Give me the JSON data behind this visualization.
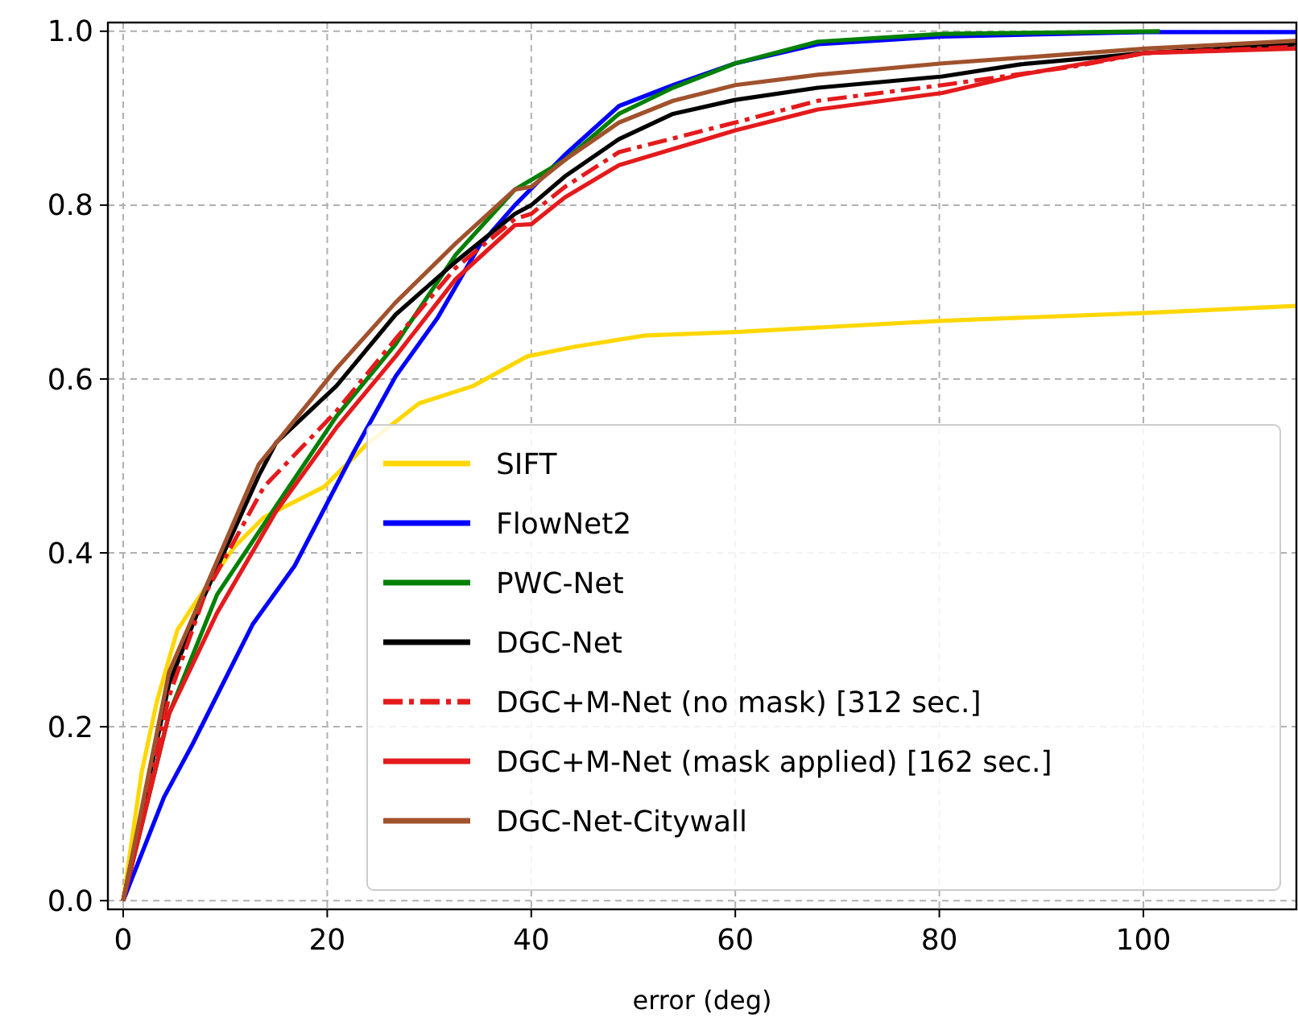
{
  "chart_data": {
    "type": "line",
    "xlabel": "error (deg)",
    "xlim": [
      -1.5,
      115
    ],
    "ylim": [
      -0.01,
      1.01
    ],
    "xticks": [
      0,
      20,
      40,
      60,
      80,
      100
    ],
    "yticks": [
      {
        "value": 0,
        "label": "0.0"
      },
      {
        "value": 0.2,
        "label": "0.2"
      },
      {
        "value": 0.4,
        "label": "0.4"
      },
      {
        "value": 0.6,
        "label": "0.6"
      },
      {
        "value": 0.8,
        "label": "0.8"
      },
      {
        "value": 1,
        "label": "1.0"
      }
    ],
    "grid": true,
    "legend": "bottom right",
    "series": [
      {
        "name": "SIFT",
        "color": "#ffd700",
        "line_style": "solid",
        "x": [
          0,
          1.8,
          3.3,
          5.3,
          6.8,
          10.9,
          13.8,
          19.7,
          23.8,
          29.0,
          34.3,
          39.6,
          44.2,
          51.2,
          60,
          80.3,
          100.2,
          115
        ],
        "values": [
          0,
          0.147,
          0.229,
          0.311,
          0.338,
          0.407,
          0.441,
          0.476,
          0.524,
          0.572,
          0.592,
          0.626,
          0.637,
          0.65,
          0.654,
          0.667,
          0.676,
          0.684
        ]
      },
      {
        "name": "FlowNet2",
        "color": "#0000ff",
        "line_style": "solid",
        "x": [
          0,
          4.0,
          6.8,
          12.7,
          16.8,
          22.6,
          26.7,
          30.8,
          34.9,
          38.4,
          43.3,
          48.6,
          53.9,
          60,
          68.1,
          80.3,
          100.2,
          115
        ],
        "values": [
          0,
          0.119,
          0.18,
          0.318,
          0.385,
          0.516,
          0.603,
          0.67,
          0.753,
          0.8,
          0.858,
          0.914,
          0.938,
          0.963,
          0.985,
          0.994,
          0.999,
          0.999
        ]
      },
      {
        "name": "PWC-Net",
        "color": "#008000",
        "line_style": "solid",
        "x": [
          0,
          4.5,
          9.2,
          15.0,
          20.9,
          26.7,
          32.6,
          38.4,
          43.3,
          48.6,
          53.9,
          60,
          68.1,
          80.3,
          101.6
        ],
        "values": [
          0,
          0.215,
          0.352,
          0.454,
          0.557,
          0.64,
          0.743,
          0.818,
          0.852,
          0.905,
          0.935,
          0.963,
          0.988,
          0.997,
          1.0
        ]
      },
      {
        "name": "DGC-Net",
        "color": "#000000",
        "line_style": "solid",
        "x": [
          0,
          4.5,
          8.0,
          13.3,
          15.0,
          20.9,
          26.7,
          32.6,
          38.4,
          40,
          43.3,
          48.6,
          53.9,
          60,
          68.1,
          80.3,
          88,
          100.2,
          115
        ],
        "values": [
          0,
          0.25,
          0.352,
          0.489,
          0.527,
          0.592,
          0.674,
          0.735,
          0.79,
          0.8,
          0.833,
          0.876,
          0.905,
          0.921,
          0.935,
          0.948,
          0.962,
          0.975,
          0.985
        ]
      },
      {
        "name": "DGC+M-Net (no mask) [312 sec.]",
        "color": "#e41a1c",
        "line_style": "dashdot",
        "x": [
          0,
          4.5,
          8.0,
          13.8,
          20.9,
          26.7,
          32.6,
          38.4,
          40,
          43.3,
          48.6,
          60,
          68.1,
          80.3,
          93.5,
          100.2,
          115
        ],
        "values": [
          0,
          0.235,
          0.352,
          0.476,
          0.563,
          0.646,
          0.728,
          0.784,
          0.79,
          0.821,
          0.861,
          0.895,
          0.92,
          0.938,
          0.96,
          0.975,
          0.982
        ]
      },
      {
        "name": "DGC+M-Net (mask applied) [162 sec.]",
        "color": "#e41a1c",
        "line_style": "solid",
        "x": [
          0,
          4.5,
          9.2,
          15.0,
          20.9,
          26.7,
          32.6,
          38.4,
          40,
          43.3,
          48.6,
          60,
          68.1,
          80.3,
          88,
          100.2,
          115
        ],
        "values": [
          0,
          0.215,
          0.331,
          0.448,
          0.544,
          0.626,
          0.715,
          0.777,
          0.778,
          0.809,
          0.846,
          0.886,
          0.91,
          0.929,
          0.95,
          0.975,
          0.98
        ]
      },
      {
        "name": "DGC-Net-Citywall",
        "color": "#a0522d",
        "line_style": "solid",
        "x": [
          0,
          4.5,
          8.0,
          13.3,
          20.9,
          26.7,
          32.6,
          38.4,
          40,
          43.3,
          48.6,
          53.9,
          60,
          68.1,
          80.3,
          100.2,
          115
        ],
        "values": [
          0,
          0.263,
          0.358,
          0.502,
          0.612,
          0.688,
          0.756,
          0.818,
          0.821,
          0.852,
          0.895,
          0.92,
          0.938,
          0.95,
          0.963,
          0.98,
          0.989
        ]
      }
    ]
  }
}
